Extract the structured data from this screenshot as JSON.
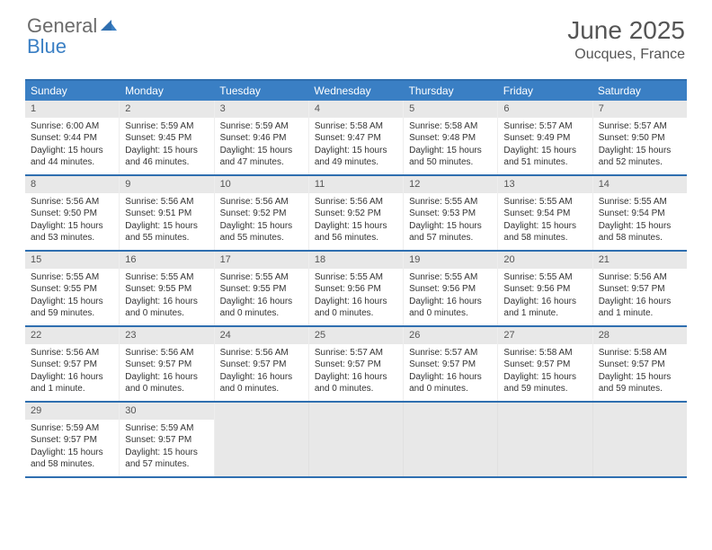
{
  "brand": {
    "part1": "General",
    "part2": "Blue"
  },
  "title": "June 2025",
  "location": "Oucques, France",
  "colors": {
    "header_bg": "#3a7fc4",
    "rule": "#2f6fb0",
    "daynum_bg": "#e8e8e8",
    "text": "#333333",
    "brand_gray": "#6b6b6b",
    "brand_blue": "#3a7fc4"
  },
  "weekdays": [
    "Sunday",
    "Monday",
    "Tuesday",
    "Wednesday",
    "Thursday",
    "Friday",
    "Saturday"
  ],
  "weeks": [
    [
      {
        "n": "1",
        "sr": "Sunrise: 6:00 AM",
        "ss": "Sunset: 9:44 PM",
        "d1": "Daylight: 15 hours",
        "d2": "and 44 minutes."
      },
      {
        "n": "2",
        "sr": "Sunrise: 5:59 AM",
        "ss": "Sunset: 9:45 PM",
        "d1": "Daylight: 15 hours",
        "d2": "and 46 minutes."
      },
      {
        "n": "3",
        "sr": "Sunrise: 5:59 AM",
        "ss": "Sunset: 9:46 PM",
        "d1": "Daylight: 15 hours",
        "d2": "and 47 minutes."
      },
      {
        "n": "4",
        "sr": "Sunrise: 5:58 AM",
        "ss": "Sunset: 9:47 PM",
        "d1": "Daylight: 15 hours",
        "d2": "and 49 minutes."
      },
      {
        "n": "5",
        "sr": "Sunrise: 5:58 AM",
        "ss": "Sunset: 9:48 PM",
        "d1": "Daylight: 15 hours",
        "d2": "and 50 minutes."
      },
      {
        "n": "6",
        "sr": "Sunrise: 5:57 AM",
        "ss": "Sunset: 9:49 PM",
        "d1": "Daylight: 15 hours",
        "d2": "and 51 minutes."
      },
      {
        "n": "7",
        "sr": "Sunrise: 5:57 AM",
        "ss": "Sunset: 9:50 PM",
        "d1": "Daylight: 15 hours",
        "d2": "and 52 minutes."
      }
    ],
    [
      {
        "n": "8",
        "sr": "Sunrise: 5:56 AM",
        "ss": "Sunset: 9:50 PM",
        "d1": "Daylight: 15 hours",
        "d2": "and 53 minutes."
      },
      {
        "n": "9",
        "sr": "Sunrise: 5:56 AM",
        "ss": "Sunset: 9:51 PM",
        "d1": "Daylight: 15 hours",
        "d2": "and 55 minutes."
      },
      {
        "n": "10",
        "sr": "Sunrise: 5:56 AM",
        "ss": "Sunset: 9:52 PM",
        "d1": "Daylight: 15 hours",
        "d2": "and 55 minutes."
      },
      {
        "n": "11",
        "sr": "Sunrise: 5:56 AM",
        "ss": "Sunset: 9:52 PM",
        "d1": "Daylight: 15 hours",
        "d2": "and 56 minutes."
      },
      {
        "n": "12",
        "sr": "Sunrise: 5:55 AM",
        "ss": "Sunset: 9:53 PM",
        "d1": "Daylight: 15 hours",
        "d2": "and 57 minutes."
      },
      {
        "n": "13",
        "sr": "Sunrise: 5:55 AM",
        "ss": "Sunset: 9:54 PM",
        "d1": "Daylight: 15 hours",
        "d2": "and 58 minutes."
      },
      {
        "n": "14",
        "sr": "Sunrise: 5:55 AM",
        "ss": "Sunset: 9:54 PM",
        "d1": "Daylight: 15 hours",
        "d2": "and 58 minutes."
      }
    ],
    [
      {
        "n": "15",
        "sr": "Sunrise: 5:55 AM",
        "ss": "Sunset: 9:55 PM",
        "d1": "Daylight: 15 hours",
        "d2": "and 59 minutes."
      },
      {
        "n": "16",
        "sr": "Sunrise: 5:55 AM",
        "ss": "Sunset: 9:55 PM",
        "d1": "Daylight: 16 hours",
        "d2": "and 0 minutes."
      },
      {
        "n": "17",
        "sr": "Sunrise: 5:55 AM",
        "ss": "Sunset: 9:55 PM",
        "d1": "Daylight: 16 hours",
        "d2": "and 0 minutes."
      },
      {
        "n": "18",
        "sr": "Sunrise: 5:55 AM",
        "ss": "Sunset: 9:56 PM",
        "d1": "Daylight: 16 hours",
        "d2": "and 0 minutes."
      },
      {
        "n": "19",
        "sr": "Sunrise: 5:55 AM",
        "ss": "Sunset: 9:56 PM",
        "d1": "Daylight: 16 hours",
        "d2": "and 0 minutes."
      },
      {
        "n": "20",
        "sr": "Sunrise: 5:55 AM",
        "ss": "Sunset: 9:56 PM",
        "d1": "Daylight: 16 hours",
        "d2": "and 1 minute."
      },
      {
        "n": "21",
        "sr": "Sunrise: 5:56 AM",
        "ss": "Sunset: 9:57 PM",
        "d1": "Daylight: 16 hours",
        "d2": "and 1 minute."
      }
    ],
    [
      {
        "n": "22",
        "sr": "Sunrise: 5:56 AM",
        "ss": "Sunset: 9:57 PM",
        "d1": "Daylight: 16 hours",
        "d2": "and 1 minute."
      },
      {
        "n": "23",
        "sr": "Sunrise: 5:56 AM",
        "ss": "Sunset: 9:57 PM",
        "d1": "Daylight: 16 hours",
        "d2": "and 0 minutes."
      },
      {
        "n": "24",
        "sr": "Sunrise: 5:56 AM",
        "ss": "Sunset: 9:57 PM",
        "d1": "Daylight: 16 hours",
        "d2": "and 0 minutes."
      },
      {
        "n": "25",
        "sr": "Sunrise: 5:57 AM",
        "ss": "Sunset: 9:57 PM",
        "d1": "Daylight: 16 hours",
        "d2": "and 0 minutes."
      },
      {
        "n": "26",
        "sr": "Sunrise: 5:57 AM",
        "ss": "Sunset: 9:57 PM",
        "d1": "Daylight: 16 hours",
        "d2": "and 0 minutes."
      },
      {
        "n": "27",
        "sr": "Sunrise: 5:58 AM",
        "ss": "Sunset: 9:57 PM",
        "d1": "Daylight: 15 hours",
        "d2": "and 59 minutes."
      },
      {
        "n": "28",
        "sr": "Sunrise: 5:58 AM",
        "ss": "Sunset: 9:57 PM",
        "d1": "Daylight: 15 hours",
        "d2": "and 59 minutes."
      }
    ],
    [
      {
        "n": "29",
        "sr": "Sunrise: 5:59 AM",
        "ss": "Sunset: 9:57 PM",
        "d1": "Daylight: 15 hours",
        "d2": "and 58 minutes."
      },
      {
        "n": "30",
        "sr": "Sunrise: 5:59 AM",
        "ss": "Sunset: 9:57 PM",
        "d1": "Daylight: 15 hours",
        "d2": "and 57 minutes."
      },
      null,
      null,
      null,
      null,
      null
    ]
  ]
}
